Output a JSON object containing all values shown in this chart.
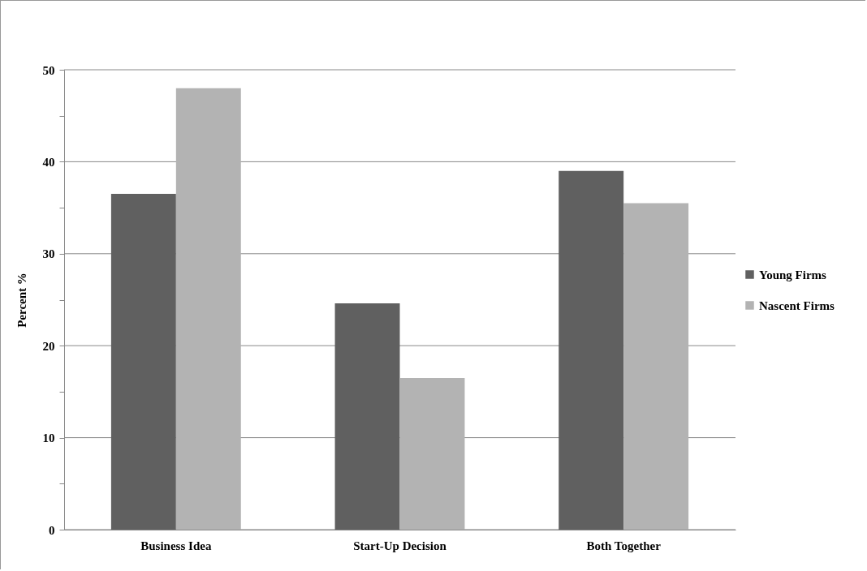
{
  "chart_data": {
    "type": "bar",
    "ylabel": "Percent %",
    "categories": [
      "Business Idea",
      "Start-Up Decision",
      "Both Together"
    ],
    "series": [
      {
        "name": "Young Firms",
        "color": "#606060",
        "values": [
          36.5,
          24.6,
          39.0
        ]
      },
      {
        "name": "Nascent Firms",
        "color": "#b3b3b3",
        "values": [
          48.0,
          16.5,
          35.5
        ]
      }
    ],
    "ylim": [
      0,
      50
    ],
    "yticks": [
      0,
      {
        "value": 5,
        "label": null
      },
      10,
      {
        "value": 15,
        "label": null
      },
      20,
      {
        "value": 25,
        "label": null
      },
      30,
      {
        "value": 35,
        "label": null
      },
      40,
      {
        "value": 45,
        "label": null
      },
      50
    ],
    "grid": "y",
    "legend": "right"
  }
}
